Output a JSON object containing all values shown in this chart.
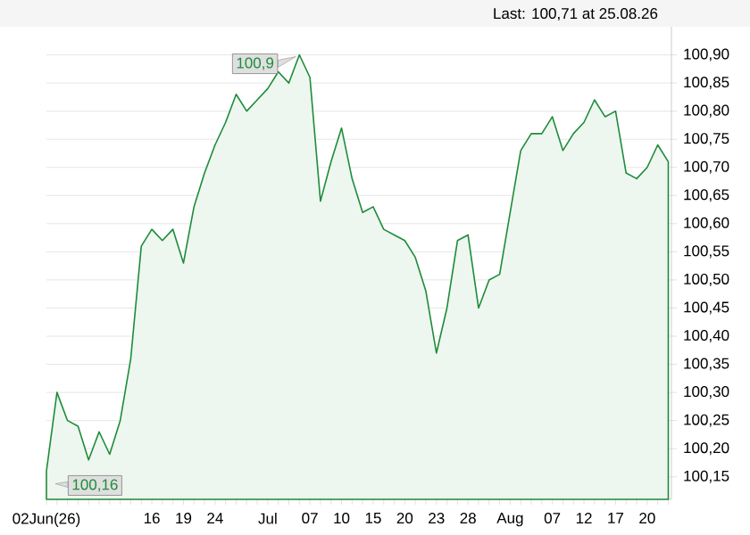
{
  "chart_data": {
    "type": "area",
    "annotations": [
      "Last: 100,71 at 25.08.26",
      "100,9",
      "100,16"
    ],
    "categories": [
      "02Jun(26)",
      null,
      null,
      null,
      null,
      null,
      null,
      null,
      null,
      null,
      "16",
      null,
      null,
      "19",
      null,
      null,
      "24",
      null,
      null,
      null,
      null,
      "Jul",
      null,
      null,
      null,
      "07",
      null,
      null,
      "10",
      null,
      null,
      "15",
      null,
      null,
      "20",
      null,
      null,
      "23",
      null,
      null,
      "28",
      null,
      null,
      null,
      "Aug",
      null,
      null,
      null,
      "07",
      null,
      null,
      "12",
      null,
      null,
      "17",
      null,
      null,
      "20",
      null,
      null
    ],
    "values": [
      100.16,
      100.3,
      100.25,
      100.24,
      100.18,
      100.23,
      100.19,
      100.25,
      100.36,
      100.56,
      100.59,
      100.57,
      100.59,
      100.53,
      100.63,
      100.69,
      100.74,
      100.78,
      100.83,
      100.8,
      100.82,
      100.84,
      100.87,
      100.85,
      100.9,
      100.86,
      100.64,
      100.71,
      100.77,
      100.68,
      100.62,
      100.63,
      100.59,
      100.58,
      100.57,
      100.54,
      100.48,
      100.37,
      100.45,
      100.57,
      100.58,
      100.45,
      100.5,
      100.51,
      100.62,
      100.73,
      100.76,
      100.76,
      100.79,
      100.73,
      100.76,
      100.78,
      100.82,
      100.79,
      100.8,
      100.69,
      100.68,
      100.7,
      100.74,
      100.71
    ],
    "color": "#1e8c3a",
    "ylim": [
      100.11,
      100.95
    ],
    "yticks": [
      {
        "value": 100.15,
        "label": "100,15"
      },
      {
        "value": 100.2,
        "label": "100,20"
      },
      {
        "value": 100.25,
        "label": "100,25"
      },
      {
        "value": 100.3,
        "label": "100,30"
      },
      {
        "value": 100.35,
        "label": "100,35"
      },
      {
        "value": 100.4,
        "label": "100,40"
      },
      {
        "value": 100.45,
        "label": "100,45"
      },
      {
        "value": 100.5,
        "label": "100,50"
      },
      {
        "value": 100.55,
        "label": "100,55"
      },
      {
        "value": 100.6,
        "label": "100,60"
      },
      {
        "value": 100.65,
        "label": "100,65"
      },
      {
        "value": 100.7,
        "label": "100,70"
      },
      {
        "value": 100.75,
        "label": "100,75"
      },
      {
        "value": 100.8,
        "label": "100,80"
      },
      {
        "value": 100.85,
        "label": "100,85"
      },
      {
        "value": 100.9,
        "label": "100,90"
      }
    ],
    "grid": "y"
  }
}
